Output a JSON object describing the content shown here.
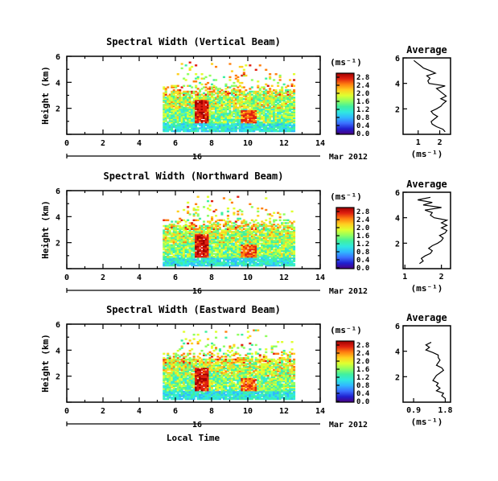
{
  "chart_data": {
    "type": "heatmap",
    "xlabel": "Local Time",
    "date_label": "16",
    "month_label": "Mar 2012",
    "x_ticks": [
      "0",
      "2",
      "4",
      "6",
      "8",
      "10",
      "12",
      "14"
    ],
    "y_ticks": [
      "2",
      "4",
      "6"
    ],
    "ylabel": "Height (km)",
    "xlim": [
      0,
      14
    ],
    "ylim": [
      0,
      6
    ],
    "data_span_hours": [
      5.3,
      12.6
    ],
    "colorbar_unit": "(ms⁻¹)",
    "colorbar_colors": [
      "#4a0080",
      "#2020d0",
      "#3a70ff",
      "#30b8ff",
      "#30e8e0",
      "#40f0a0",
      "#90ff60",
      "#e0ff30",
      "#ffd020",
      "#ff8010",
      "#e02010",
      "#a00000"
    ],
    "avg_title": "Average",
    "avg_xlabel": "(ms⁻¹)",
    "avg_y_ticks": [
      "2",
      "4",
      "6"
    ],
    "panels": [
      {
        "title": "Spectral Width (Vertical Beam)",
        "colorbar_ticks": [
          "0.0",
          "0.4",
          "0.8",
          "1.2",
          "1.6",
          "2.0",
          "2.4",
          "2.8"
        ],
        "avg_x_ticks": [
          "1",
          "2"
        ],
        "avg_xlim": [
          0.3,
          2.5
        ],
        "avg_profile": [
          [
            2.25,
            0.2
          ],
          [
            2.15,
            0.4
          ],
          [
            1.85,
            0.6
          ],
          [
            1.65,
            0.8
          ],
          [
            1.6,
            1.0
          ],
          [
            1.75,
            1.2
          ],
          [
            1.9,
            1.4
          ],
          [
            1.7,
            1.6
          ],
          [
            1.6,
            1.8
          ],
          [
            1.85,
            2.0
          ],
          [
            2.05,
            2.2
          ],
          [
            2.15,
            2.4
          ],
          [
            2.3,
            2.6
          ],
          [
            2.05,
            2.8
          ],
          [
            2.3,
            3.0
          ],
          [
            2.15,
            3.2
          ],
          [
            2.0,
            3.4
          ],
          [
            1.85,
            3.6
          ],
          [
            2.25,
            3.8
          ],
          [
            1.5,
            4.0
          ],
          [
            1.45,
            4.2
          ],
          [
            1.55,
            4.4
          ],
          [
            1.4,
            4.6
          ],
          [
            1.8,
            4.8
          ],
          [
            1.55,
            5.0
          ],
          [
            1.25,
            5.2
          ],
          [
            1.1,
            5.4
          ],
          [
            0.95,
            5.6
          ],
          [
            0.8,
            5.8
          ]
        ]
      },
      {
        "title": "Spectral Width (Northward Beam)",
        "colorbar_ticks": [
          "0.0",
          "0.4",
          "0.8",
          "1.2",
          "1.6",
          "2.0",
          "2.4",
          "2.8"
        ],
        "avg_x_ticks": [
          "1",
          "2"
        ],
        "avg_xlim": [
          0.95,
          2.25
        ],
        "avg_profile": [
          [
            1.4,
            0.4
          ],
          [
            1.5,
            0.6
          ],
          [
            1.45,
            0.8
          ],
          [
            1.55,
            1.0
          ],
          [
            1.7,
            1.2
          ],
          [
            1.75,
            1.4
          ],
          [
            1.65,
            1.6
          ],
          [
            1.75,
            1.8
          ],
          [
            1.9,
            2.0
          ],
          [
            2.0,
            2.2
          ],
          [
            2.05,
            2.4
          ],
          [
            1.95,
            2.6
          ],
          [
            2.1,
            2.8
          ],
          [
            2.15,
            3.0
          ],
          [
            2.0,
            3.2
          ],
          [
            2.15,
            3.4
          ],
          [
            2.0,
            3.6
          ],
          [
            2.15,
            3.8
          ],
          [
            1.8,
            4.0
          ],
          [
            1.7,
            4.2
          ],
          [
            1.75,
            4.4
          ],
          [
            1.55,
            4.6
          ],
          [
            2.0,
            4.8
          ],
          [
            1.5,
            5.0
          ],
          [
            1.75,
            5.2
          ],
          [
            1.35,
            5.4
          ],
          [
            1.7,
            5.6
          ]
        ]
      },
      {
        "title": "Spectral Width (Eastward Beam)",
        "colorbar_ticks": [
          "0.0",
          "0.4",
          "0.8",
          "1.2",
          "1.6",
          "2.0",
          "2.4",
          "2.8"
        ],
        "avg_x_ticks": [
          "0.9",
          "1.8"
        ],
        "avg_xlim": [
          0.6,
          1.95
        ],
        "avg_profile": [
          [
            1.8,
            0.3
          ],
          [
            1.7,
            0.5
          ],
          [
            1.75,
            0.7
          ],
          [
            1.55,
            0.9
          ],
          [
            1.65,
            1.1
          ],
          [
            1.55,
            1.3
          ],
          [
            1.6,
            1.5
          ],
          [
            1.45,
            1.7
          ],
          [
            1.5,
            1.9
          ],
          [
            1.55,
            2.1
          ],
          [
            1.65,
            2.3
          ],
          [
            1.75,
            2.5
          ],
          [
            1.7,
            2.7
          ],
          [
            1.55,
            2.9
          ],
          [
            1.6,
            3.1
          ],
          [
            1.65,
            3.3
          ],
          [
            1.6,
            3.5
          ],
          [
            1.6,
            3.7
          ],
          [
            1.45,
            3.9
          ],
          [
            1.25,
            4.1
          ],
          [
            1.35,
            4.3
          ],
          [
            1.25,
            4.5
          ],
          [
            1.4,
            4.7
          ]
        ]
      }
    ]
  }
}
